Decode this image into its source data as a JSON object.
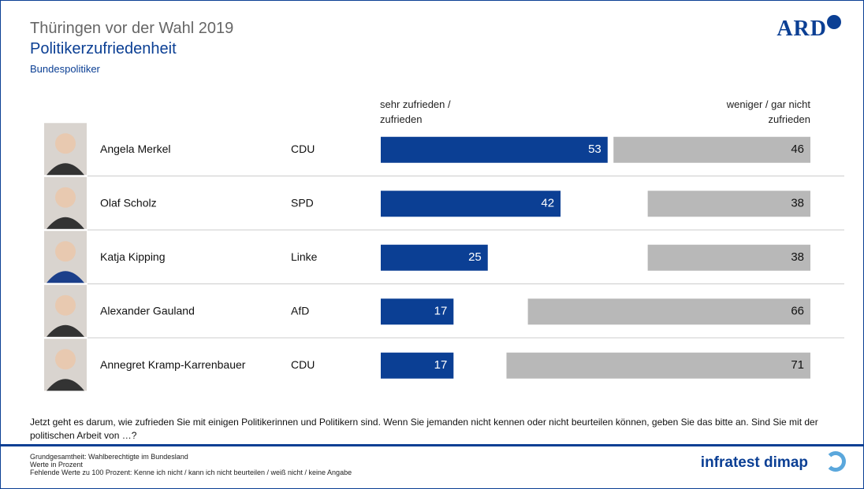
{
  "chart_data": {
    "type": "diverging_bar",
    "title": "Thüringen vor der Wahl 2019",
    "subtitle": "Politikerzufriedenheit",
    "group": "Bundespolitiker",
    "categories": [
      "Angela Merkel",
      "Olaf Scholz",
      "Katja Kipping",
      "Alexander Gauland",
      "Annegret Kramp-Karrenbauer"
    ],
    "parties": [
      "CDU",
      "SPD",
      "Linke",
      "AfD",
      "CDU"
    ],
    "series": [
      {
        "name": "sehr zufrieden / zufrieden",
        "color": "#0b3f94",
        "values": [
          53,
          42,
          25,
          17,
          17
        ]
      },
      {
        "name": "weniger / gar nicht zufrieden",
        "color": "#b8b8b8",
        "values": [
          46,
          38,
          38,
          66,
          71
        ]
      }
    ]
  },
  "question": "Jetzt geht es darum, wie zufrieden Sie mit einigen Politikerinnen und Politikern sind. Wenn Sie jemanden nicht kennen oder nicht beurteilen können, geben Sie das bitte an. Sind Sie mit der politischen Arbeit von …?",
  "footnotes": [
    "Grundgesamtheit: Wahlberechtigte im Bundesland",
    "Werte in Prozent",
    "Fehlende Werte zu 100 Prozent: Kenne ich nicht / kann ich nicht beurteilen / weiß nicht / keine Angabe"
  ],
  "branding": {
    "broadcaster": "ARD",
    "institute": "infratest dimap"
  }
}
